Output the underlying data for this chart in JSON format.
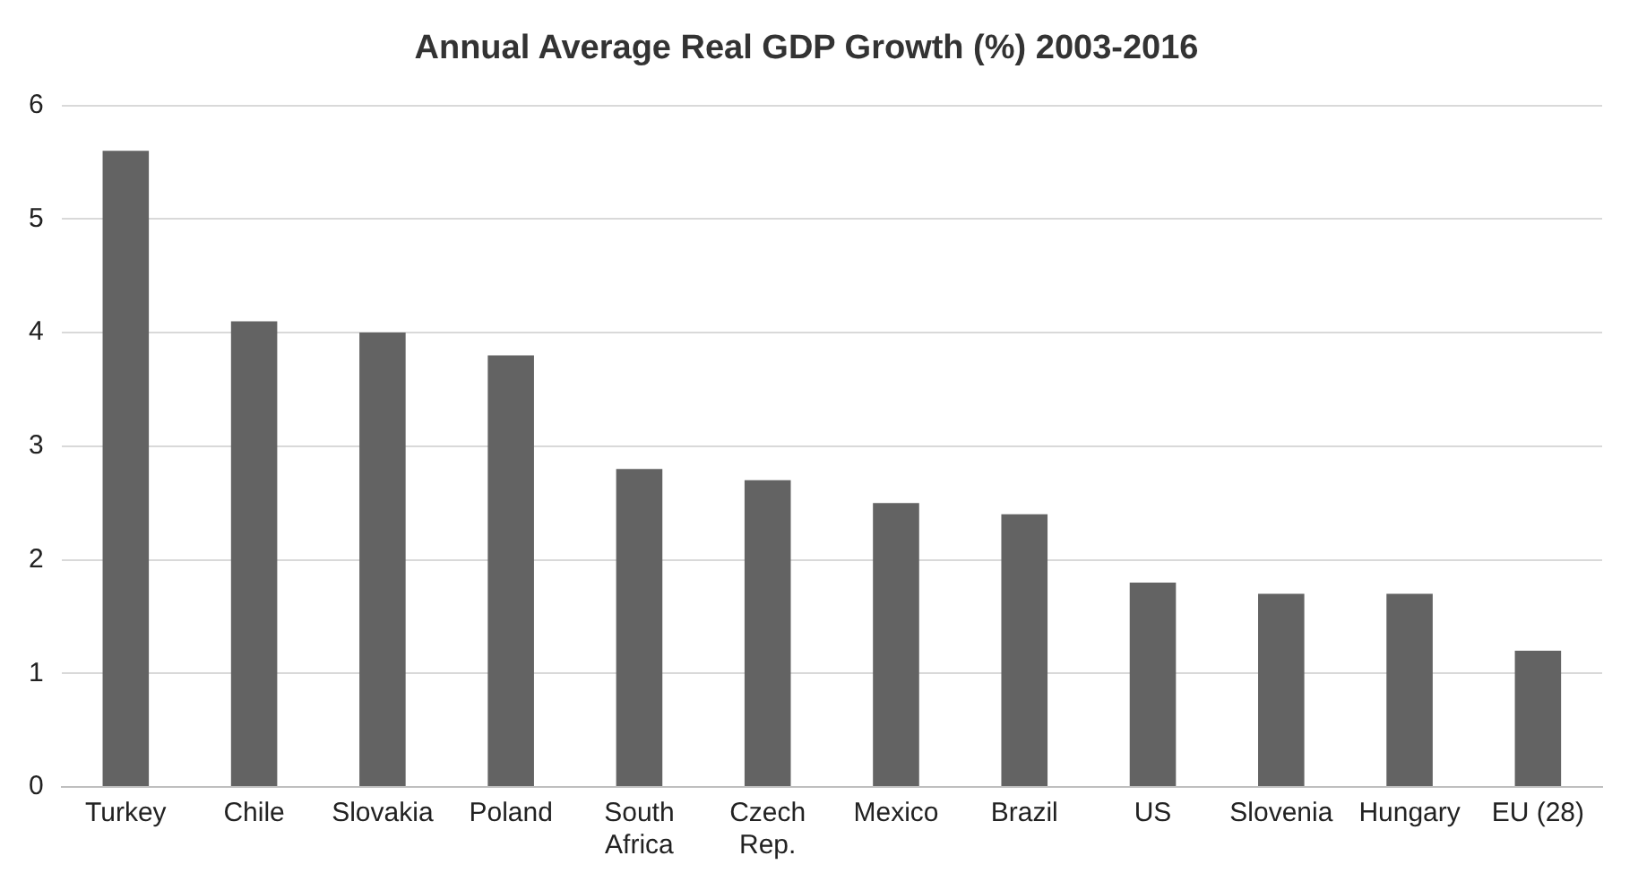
{
  "chart_data": {
    "type": "bar",
    "title": "Annual Average Real GDP Growth (%) 2003-2016",
    "categories": [
      "Turkey",
      "Chile",
      "Slovakia",
      "Poland",
      "South Africa",
      "Czech Rep.",
      "Mexico",
      "Brazil",
      "US",
      "Slovenia",
      "Hungary",
      "EU (28)"
    ],
    "values": [
      5.6,
      4.1,
      4.0,
      3.8,
      2.8,
      2.7,
      2.5,
      2.4,
      1.8,
      1.7,
      1.7,
      1.2
    ],
    "color": "#636363",
    "ylim": [
      0,
      6
    ],
    "yticks": [
      0,
      1,
      2,
      3,
      4,
      5,
      6
    ],
    "grid": "y",
    "legend": false
  }
}
